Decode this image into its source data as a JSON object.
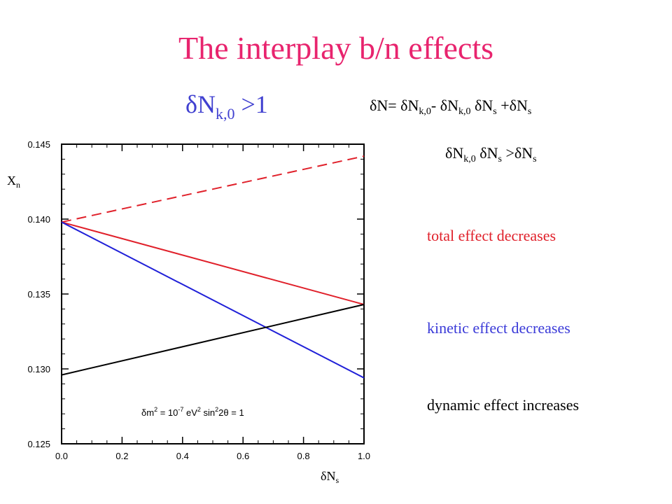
{
  "title": "The interplay b/n effects",
  "subtitle": {
    "delta": "δ",
    "var": "N",
    "sub": "k,0",
    "rest": " >1"
  },
  "equation1": {
    "p1": "δN= δN",
    "s1": "k,0",
    "p2": "- δN",
    "s2": "k,0",
    "p3": " δN",
    "s3": "s",
    "p4": " +δN",
    "s4": "s"
  },
  "equation2": {
    "p1": "δN",
    "s1": "k,0",
    "p2": " δN",
    "s2": "s",
    "p3": " >δN",
    "s3": "s"
  },
  "notes": [
    {
      "text": "total effect decreases",
      "color": "#e0202a"
    },
    {
      "text": "kinetic effect decreases",
      "color": "#3a3ad8"
    },
    {
      "text": "dynamic effect increases",
      "color": "#000000"
    }
  ],
  "annotation": {
    "p1": "δm",
    "s1": "2",
    "p2": " = 10",
    "s2": "-7",
    "p3": " eV",
    "s3": "2",
    "p4": "   sin",
    "s4": "2",
    "p5": "2θ = 1"
  },
  "chart_data": {
    "type": "line",
    "xlabel": "δN",
    "xlabel_sub": "s",
    "ylabel": "X",
    "ylabel_sub": "n",
    "xlim": [
      0.0,
      1.0
    ],
    "ylim": [
      0.125,
      0.145
    ],
    "xticks": [
      "0.0",
      "0.2",
      "0.4",
      "0.6",
      "0.8",
      "1.0"
    ],
    "yticks": [
      "0.125",
      "0.130",
      "0.135",
      "0.140",
      "0.145"
    ],
    "grid": false,
    "series": [
      {
        "x": [
          0.0,
          1.0
        ],
        "y": [
          0.1398,
          0.1442
        ],
        "color": "#e0202a",
        "dash": true
      },
      {
        "x": [
          0.0,
          1.0
        ],
        "y": [
          0.1398,
          0.1343
        ],
        "color": "#e0202a",
        "dash": false
      },
      {
        "x": [
          0.0,
          1.0
        ],
        "y": [
          0.1398,
          0.1294
        ],
        "color": "#2020d8",
        "dash": false
      },
      {
        "x": [
          0.0,
          1.0
        ],
        "y": [
          0.1296,
          0.1343
        ],
        "color": "#000000",
        "dash": false
      }
    ]
  }
}
